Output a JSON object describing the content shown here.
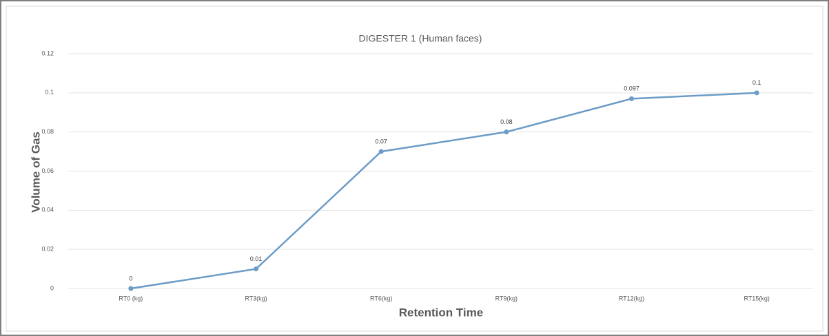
{
  "chart_data": {
    "type": "line",
    "title": "DIGESTER 1 (Human faces)",
    "x_label": "Retention Time",
    "y_label": "Volume of Gas",
    "categories": [
      "RT0 (kg)",
      "RT3(kg)",
      "RT6(kg)",
      "RT9(kg)",
      "RT12(kg)",
      "RT15(kg)"
    ],
    "series": [
      {
        "name": "Volume of Gas",
        "color": "#6b9bc7",
        "values": [
          0,
          0.01,
          0.07,
          0.08,
          0.097,
          0.1
        ]
      }
    ],
    "ylim": [
      0,
      0.12
    ],
    "yticks": [
      0,
      0.02,
      0.04,
      0.06,
      0.08,
      0.1,
      0.12
    ],
    "grid": true,
    "data_labels": true
  }
}
